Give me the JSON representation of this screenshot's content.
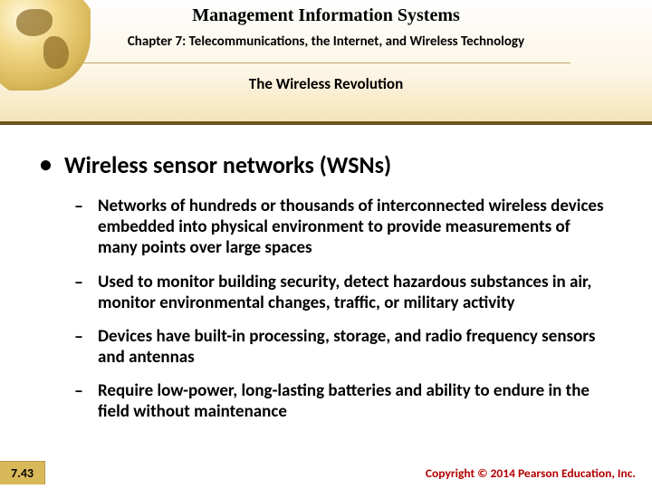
{
  "header": {
    "title": "Management Information Systems",
    "chapter": "Chapter 7: Telecommunications, the Internet, and Wireless Technology",
    "section": "The Wireless Revolution"
  },
  "body": {
    "main_bullet": "Wireless sensor networks (WSNs)",
    "sub_bullets": [
      "Networks of hundreds or thousands of interconnected wireless devices embedded into physical environment to provide measurements of many points over large spaces",
      "Used to monitor building security, detect hazardous substances in air, monitor environmental changes, traffic, or military activity",
      "Devices have built-in processing, storage, and radio frequency sensors and antennas",
      "Require low-power, long-lasting batteries and ability to endure in the field without maintenance"
    ]
  },
  "footer": {
    "page": "7.43",
    "copyright": "Copyright © 2014 Pearson Education, Inc."
  },
  "style": {
    "background_gradient": [
      "#fefefe",
      "#fdf6e6",
      "#f5e4b8"
    ],
    "header_border_color": "#6b5520",
    "hr_color": "#c0a868",
    "copyright_color": "#b30000",
    "pagebox_bg": "#d9b85a",
    "title_fontsize": 20,
    "chapter_fontsize": 15,
    "section_fontsize": 17,
    "b1_fontsize": 26,
    "b2_fontsize": 19
  }
}
